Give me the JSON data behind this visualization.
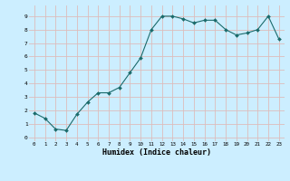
{
  "x": [
    0,
    1,
    2,
    3,
    4,
    5,
    6,
    7,
    8,
    9,
    10,
    11,
    12,
    13,
    14,
    15,
    16,
    17,
    18,
    19,
    20,
    21,
    22,
    23
  ],
  "y": [
    1.8,
    1.4,
    0.6,
    0.5,
    1.7,
    2.6,
    3.3,
    3.3,
    3.7,
    4.8,
    5.9,
    8.0,
    9.0,
    9.0,
    8.8,
    8.5,
    8.7,
    8.7,
    8.0,
    7.6,
    7.75,
    8.0,
    9.0,
    7.3
  ],
  "xlabel": "Humidex (Indice chaleur)",
  "bg_color": "#cceeff",
  "grid_color": "#ddbcbc",
  "line_color": "#1a6b6b",
  "marker_color": "#1a6b6b",
  "xlim": [
    -0.5,
    23.5
  ],
  "ylim": [
    -0.3,
    9.8
  ],
  "yticks": [
    0,
    1,
    2,
    3,
    4,
    5,
    6,
    7,
    8,
    9
  ],
  "xticks": [
    0,
    1,
    2,
    3,
    4,
    5,
    6,
    7,
    8,
    9,
    10,
    11,
    12,
    13,
    14,
    15,
    16,
    17,
    18,
    19,
    20,
    21,
    22,
    23
  ]
}
